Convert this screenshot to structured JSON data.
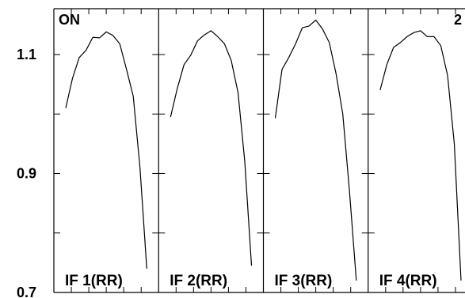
{
  "corner_label_left": "ON",
  "corner_label_right": "2",
  "chart_data": {
    "type": "line",
    "ylim": [
      0.7,
      1.16
    ],
    "yticks": [
      0.7,
      0.9,
      1.1
    ],
    "ytick_labels": [
      "0.7",
      "0.9",
      "1.1"
    ],
    "grid": false,
    "panels": [
      {
        "label": "IF 1(RR)",
        "x": [
          1,
          2,
          3,
          4,
          5,
          6,
          7,
          8,
          9,
          10,
          11,
          12,
          13
        ],
        "values": [
          1.01,
          1.06,
          1.095,
          1.107,
          1.129,
          1.128,
          1.138,
          1.132,
          1.118,
          1.075,
          1.03,
          0.91,
          0.74
        ]
      },
      {
        "label": "IF 2(RR)",
        "x": [
          1,
          2,
          3,
          4,
          5,
          6,
          7,
          8,
          9,
          10,
          11,
          12,
          13
        ],
        "values": [
          0.995,
          1.043,
          1.083,
          1.099,
          1.123,
          1.133,
          1.14,
          1.13,
          1.118,
          1.09,
          1.036,
          0.92,
          0.745
        ]
      },
      {
        "label": "IF 3(RR)",
        "x": [
          1,
          2,
          3,
          4,
          5,
          6,
          7,
          8,
          9,
          10,
          11,
          12,
          13
        ],
        "values": [
          0.993,
          1.075,
          1.095,
          1.118,
          1.145,
          1.148,
          1.158,
          1.143,
          1.12,
          1.068,
          1.0,
          0.87,
          0.72
        ]
      },
      {
        "label": "IF 4(RR)",
        "x": [
          1,
          2,
          3,
          4,
          5,
          6,
          7,
          8,
          9,
          10,
          11,
          12,
          13
        ],
        "values": [
          1.04,
          1.083,
          1.112,
          1.12,
          1.13,
          1.137,
          1.14,
          1.13,
          1.13,
          1.115,
          1.065,
          0.95,
          0.72
        ]
      }
    ]
  }
}
